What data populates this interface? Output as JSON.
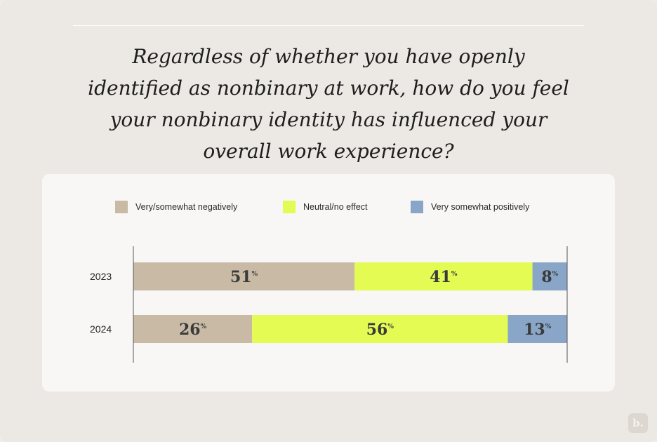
{
  "title": "Regardless of whether you have openly identified as nonbinary at work, how do you feel your nonbinary identity has influenced your overall work experience?",
  "title_lines": [
    "Regardless of whether you have openly",
    "identified as nonbinary at work, how do you feel",
    "your nonbinary identity has influenced your",
    "overall work experience?"
  ],
  "logo_text": "b.",
  "chart_data": {
    "type": "bar",
    "orientation": "horizontal",
    "stacked": true,
    "normalized": true,
    "categories": [
      "2023",
      "2024"
    ],
    "series": [
      {
        "name": "Very/somewhat negatively",
        "color": "#c9baa6",
        "values": [
          51,
          26
        ]
      },
      {
        "name": "Neutral/no effect",
        "color": "#e4fb54",
        "values": [
          41,
          56
        ]
      },
      {
        "name": "Very somewhat positively",
        "color": "#89a6c8",
        "values": [
          8,
          13
        ]
      }
    ],
    "value_suffix": "%",
    "legend_position": "top",
    "grid": false,
    "title": "",
    "xlabel": "",
    "ylabel": ""
  }
}
